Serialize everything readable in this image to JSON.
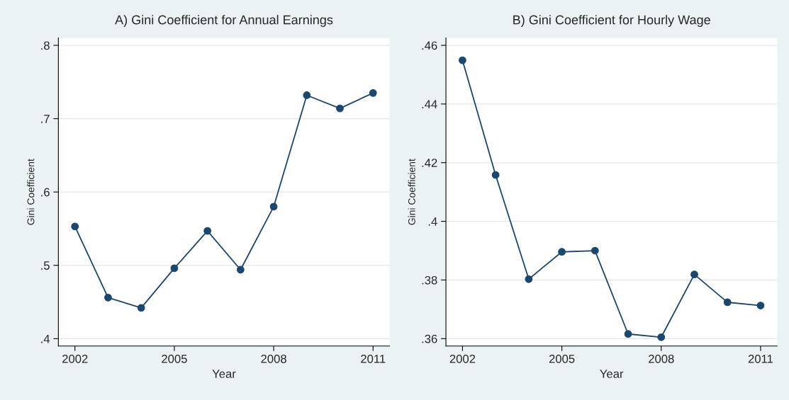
{
  "chart_data": [
    {
      "type": "line",
      "title": "A) Gini Coefficient for Annual Earnings",
      "xlabel": "Year",
      "ylabel": "Gini Coefficient",
      "x": [
        2002,
        2003,
        2004,
        2005,
        2006,
        2007,
        2008,
        2009,
        2010,
        2011
      ],
      "series": [
        {
          "color": "#1a476f",
          "values": [
            0.553,
            0.456,
            0.442,
            0.496,
            0.547,
            0.494,
            0.58,
            0.732,
            0.714,
            0.735
          ]
        }
      ],
      "xlim": [
        2001.5,
        2011.5
      ],
      "xticks": [
        2002,
        2005,
        2008,
        2011
      ],
      "ylim": [
        0.39,
        0.81
      ],
      "yticks": [
        {
          "value": 0.4,
          "label": ".4"
        },
        {
          "value": 0.5,
          "label": ".5"
        },
        {
          "value": 0.6,
          "label": ".6"
        },
        {
          "value": 0.7,
          "label": ".7"
        },
        {
          "value": 0.8,
          "label": ".8"
        }
      ],
      "grid": "y",
      "marker": "circle",
      "line_style": "solid",
      "legend": false
    },
    {
      "type": "line",
      "title": "B) Gini Coefficient for Hourly Wage",
      "xlabel": "Year",
      "ylabel": "Gini Coefficient",
      "x": [
        2002,
        2003,
        2004,
        2005,
        2006,
        2007,
        2008,
        2009,
        2010,
        2011
      ],
      "series": [
        {
          "color": "#1a476f",
          "values": [
            0.4549,
            0.4158,
            0.3803,
            0.3896,
            0.39,
            0.3616,
            0.3605,
            0.3819,
            0.3724,
            0.3713
          ]
        }
      ],
      "xlim": [
        2001.5,
        2011.5
      ],
      "xticks": [
        2002,
        2005,
        2008,
        2011
      ],
      "ylim": [
        0.3575,
        0.4625
      ],
      "yticks": [
        {
          "value": 0.36,
          "label": ".36"
        },
        {
          "value": 0.38,
          "label": ".38"
        },
        {
          "value": 0.4,
          "label": ".4"
        },
        {
          "value": 0.42,
          "label": ".42"
        },
        {
          "value": 0.44,
          "label": ".44"
        },
        {
          "value": 0.46,
          "label": ".46"
        }
      ],
      "grid": "y",
      "marker": "circle",
      "line_style": "solid",
      "legend": false
    }
  ]
}
